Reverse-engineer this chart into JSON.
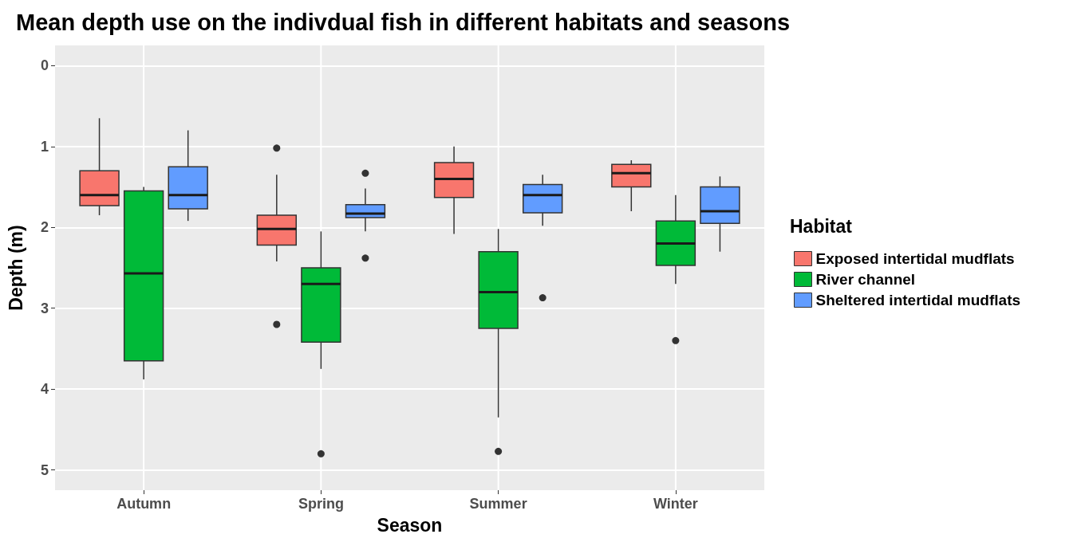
{
  "chart_data": {
    "type": "box",
    "title": "Mean depth use on the indivdual fish in different habitats and seasons",
    "xlabel": "Season",
    "ylabel": "Depth (m)",
    "legend_title": "Habitat",
    "legend": "right",
    "grid": true,
    "categories": [
      "Autumn",
      "Spring",
      "Summer",
      "Winter"
    ],
    "ylim": [
      5.25,
      -0.25
    ],
    "yticks": [
      0,
      1,
      2,
      3,
      4,
      5
    ],
    "series": [
      {
        "name": "Exposed intertidal mudflats",
        "color": "#f8766d",
        "boxes": [
          {
            "low": 0.65,
            "q1": 1.3,
            "median": 1.6,
            "q3": 1.73,
            "high": 1.85
          },
          {
            "low": 1.35,
            "q1": 1.85,
            "median": 2.02,
            "q3": 2.22,
            "high": 2.42,
            "outliers": [
              1.02,
              3.2
            ]
          },
          {
            "low": 1.0,
            "q1": 1.2,
            "median": 1.4,
            "q3": 1.63,
            "high": 2.08
          },
          {
            "low": 1.17,
            "q1": 1.22,
            "median": 1.33,
            "q3": 1.5,
            "high": 1.8
          }
        ]
      },
      {
        "name": "River channel",
        "color": "#00ba38",
        "boxes": [
          {
            "low": 1.5,
            "q1": 1.55,
            "median": 2.57,
            "q3": 3.65,
            "high": 3.88
          },
          {
            "low": 2.05,
            "q1": 2.5,
            "median": 2.7,
            "q3": 3.42,
            "high": 3.75,
            "outliers": [
              4.8
            ]
          },
          {
            "low": 2.02,
            "q1": 2.3,
            "median": 2.8,
            "q3": 3.25,
            "high": 4.35,
            "outliers": [
              4.77
            ]
          },
          {
            "low": 1.6,
            "q1": 1.92,
            "median": 2.2,
            "q3": 2.47,
            "high": 2.7,
            "outliers": [
              3.4
            ]
          }
        ]
      },
      {
        "name": "Sheltered intertidal mudflats",
        "color": "#619cff",
        "boxes": [
          {
            "low": 0.8,
            "q1": 1.25,
            "median": 1.6,
            "q3": 1.77,
            "high": 1.92
          },
          {
            "low": 1.52,
            "q1": 1.72,
            "median": 1.83,
            "q3": 1.88,
            "high": 2.05,
            "outliers": [
              1.33,
              2.38
            ]
          },
          {
            "low": 1.35,
            "q1": 1.47,
            "median": 1.6,
            "q3": 1.82,
            "high": 1.98,
            "outliers": [
              2.87
            ]
          },
          {
            "low": 1.37,
            "q1": 1.5,
            "median": 1.8,
            "q3": 1.95,
            "high": 2.3
          }
        ]
      }
    ]
  }
}
